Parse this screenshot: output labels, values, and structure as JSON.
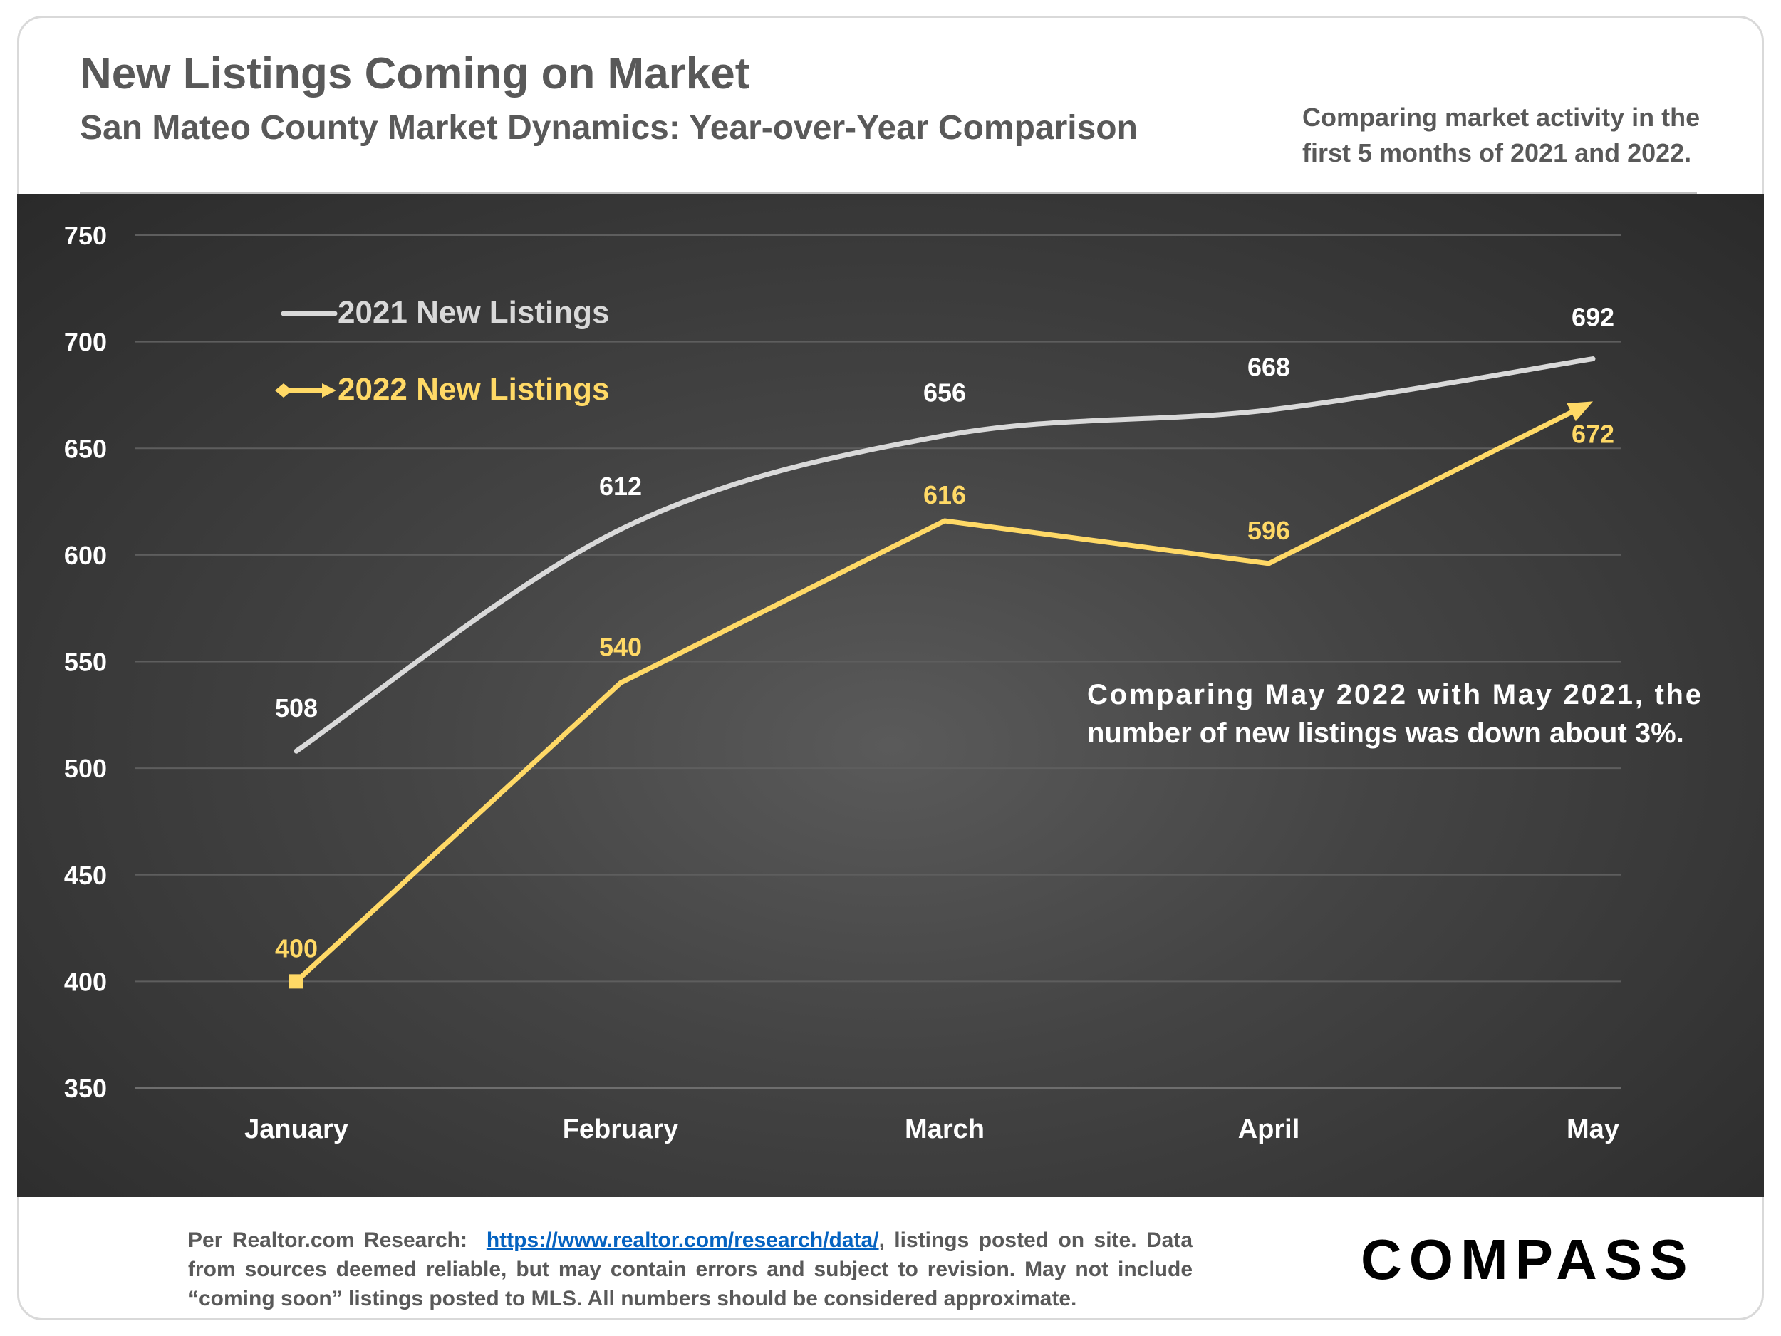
{
  "header": {
    "title": "New Listings Coming on Market",
    "subtitle": "San Mateo County Market Dynamics: Year-over-Year Comparison",
    "side_note_line1": "Comparing market activity in the",
    "side_note_line2": "first 5 months of 2021 and 2022."
  },
  "chart_data": {
    "type": "line",
    "title": "New Listings Coming on Market",
    "xlabel": "",
    "ylabel": "",
    "categories": [
      "January",
      "February",
      "March",
      "April",
      "May"
    ],
    "ylim": [
      350,
      750
    ],
    "yticks": [
      350,
      400,
      450,
      500,
      550,
      600,
      650,
      700,
      750
    ],
    "grid": true,
    "legend_position": "top-left",
    "series": [
      {
        "name": "2021 New Listings",
        "values": [
          508,
          612,
          656,
          668,
          692
        ],
        "color": "#d9d9d9",
        "smooth": true
      },
      {
        "name": "2022 New Listings",
        "values": [
          400,
          540,
          616,
          596,
          672
        ],
        "color": "#ffd966",
        "smooth": false
      }
    ],
    "annotation_line1": "Comparing May 2022 with May 2021, the",
    "annotation_line2": "number of new listings was down about 3%."
  },
  "footer": {
    "source_prefix": "Per Realtor.com Research:",
    "source_url": "https://www.realtor.com/research/data/",
    "source_suffix": ", listings posted on site.",
    "disclaimer": "Data from sources deemed reliable, but may contain errors and subject to revision. May not include “coming soon” listings posted to MLS. All numbers should be considered approximate."
  },
  "logo": {
    "text": "COMPASS"
  },
  "colors": {
    "series_2021": "#d9d9d9",
    "series_2022": "#ffd966",
    "text_gray": "#595959",
    "link_blue": "#0563c1"
  }
}
